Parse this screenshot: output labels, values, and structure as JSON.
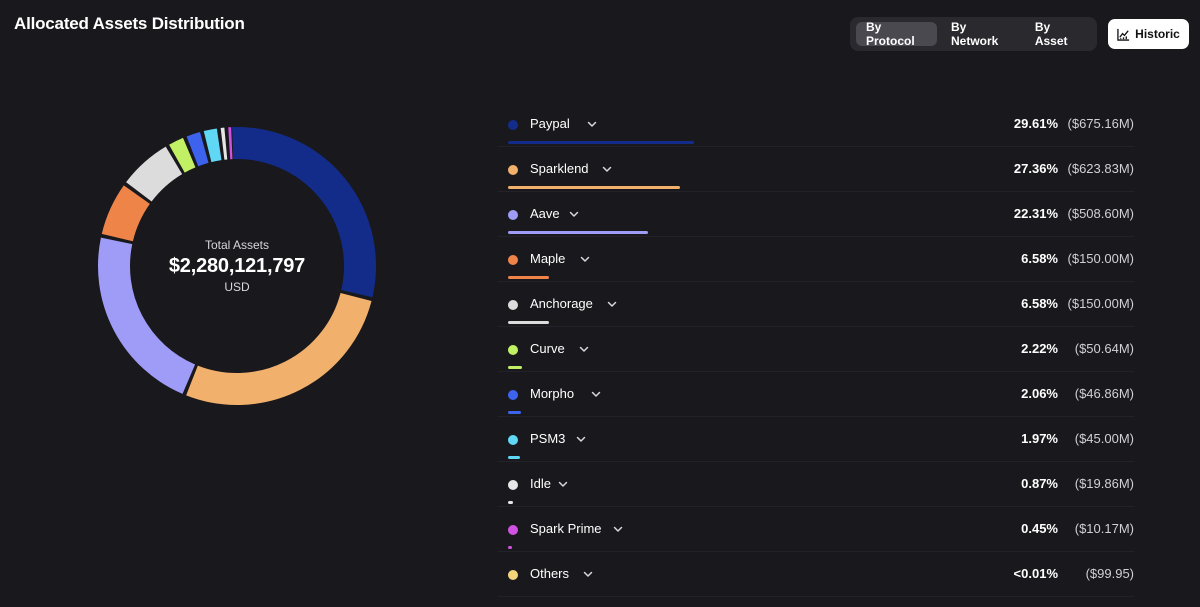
{
  "header": {
    "title": "Allocated Assets Distribution",
    "tabs": [
      {
        "label": "By Protocol",
        "active": true
      },
      {
        "label": "By Network",
        "active": false
      },
      {
        "label": "By Asset",
        "active": false
      }
    ],
    "historic_label": "Historic"
  },
  "total": {
    "label": "Total Assets",
    "value": "$2,280,121,797",
    "unit": "USD"
  },
  "chart_data": {
    "type": "pie",
    "title": "Allocated Assets Distribution",
    "categories": [
      "Paypal",
      "Sparklend",
      "Aave",
      "Maple",
      "Anchorage",
      "Curve",
      "Morpho",
      "PSM3",
      "Idle",
      "Spark Prime",
      "Others"
    ],
    "values": [
      29.61,
      27.36,
      22.31,
      6.58,
      6.58,
      2.22,
      2.06,
      1.97,
      0.87,
      0.45,
      0.0
    ],
    "colors": [
      "#132c8a",
      "#f1b06b",
      "#9e9cf7",
      "#ef8448",
      "#dcdcdc",
      "#c2f064",
      "#3d63ee",
      "#5fd7f5",
      "#e6e6e6",
      "#cf52e1",
      "#f4d57a"
    ]
  },
  "legend": {
    "items": [
      {
        "name": "Paypal",
        "pct": "29.61%",
        "amount": "($675.16M)",
        "color": "#132c8a",
        "share": 29.61
      },
      {
        "name": "Sparklend",
        "pct": "27.36%",
        "amount": "($623.83M)",
        "color": "#f1b06b",
        "share": 27.36
      },
      {
        "name": "Aave",
        "pct": "22.31%",
        "amount": "($508.60M)",
        "color": "#9e9cf7",
        "share": 22.31
      },
      {
        "name": "Maple",
        "pct": "6.58%",
        "amount": "($150.00M)",
        "color": "#ef8448",
        "share": 6.58
      },
      {
        "name": "Anchorage",
        "pct": "6.58%",
        "amount": "($150.00M)",
        "color": "#dcdcdc",
        "share": 6.58
      },
      {
        "name": "Curve",
        "pct": "2.22%",
        "amount": "($50.64M)",
        "color": "#c2f064",
        "share": 2.22
      },
      {
        "name": "Morpho",
        "pct": "2.06%",
        "amount": "($46.86M)",
        "color": "#3d63ee",
        "share": 2.06
      },
      {
        "name": "PSM3",
        "pct": "1.97%",
        "amount": "($45.00M)",
        "color": "#5fd7f5",
        "share": 1.97
      },
      {
        "name": "Idle",
        "pct": "0.87%",
        "amount": "($19.86M)",
        "color": "#e6e6e6",
        "share": 0.87
      },
      {
        "name": "Spark Prime",
        "pct": "0.45%",
        "amount": "($10.17M)",
        "color": "#cf52e1",
        "share": 0.45
      },
      {
        "name": "Others",
        "pct": "<0.01%",
        "amount": "($99.95)",
        "color": "#f4d57a",
        "share": 0.0
      }
    ]
  }
}
